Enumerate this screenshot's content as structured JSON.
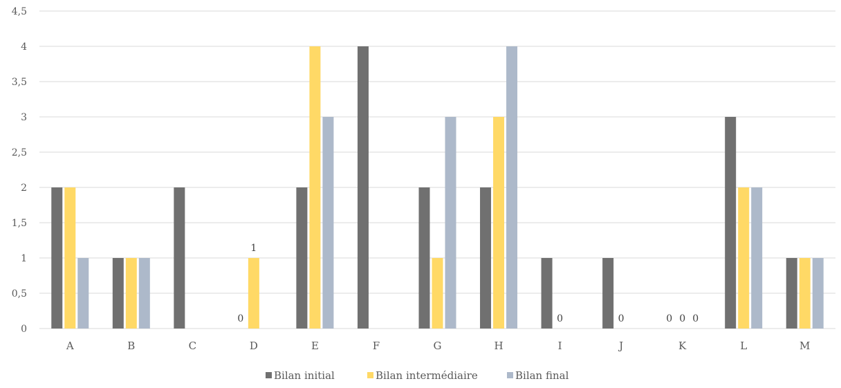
{
  "chart_data": {
    "type": "bar",
    "categories": [
      "A",
      "B",
      "C",
      "D",
      "E",
      "F",
      "G",
      "H",
      "I",
      "J",
      "K",
      "L",
      "M"
    ],
    "series": [
      {
        "name": "Bilan initial",
        "color": "#707070",
        "values": [
          2,
          1,
          2,
          0,
          2,
          4,
          2,
          2,
          1,
          1,
          0,
          3,
          1
        ]
      },
      {
        "name": "Bilan intermédiaire",
        "color": "#ffd966",
        "values": [
          2,
          1,
          0,
          1,
          4,
          0,
          1,
          3,
          0,
          0,
          0,
          2,
          1
        ]
      },
      {
        "name": "Bilan final",
        "color": "#adb9ca",
        "values": [
          1,
          1,
          0,
          0,
          3,
          0,
          3,
          4,
          0,
          0,
          0,
          2,
          1
        ]
      }
    ],
    "data_labels": [
      {
        "category": "D",
        "series": 0,
        "text": "0"
      },
      {
        "category": "D",
        "series": 1,
        "text": "1"
      },
      {
        "category": "I",
        "series": 1,
        "text": "0"
      },
      {
        "category": "J",
        "series": 1,
        "text": "0"
      },
      {
        "category": "K",
        "series": 0,
        "text": "0"
      },
      {
        "category": "K",
        "series": 1,
        "text": "0"
      },
      {
        "category": "K",
        "series": 2,
        "text": "0"
      }
    ],
    "y_ticks": [
      "0",
      "0,5",
      "1",
      "1,5",
      "2",
      "2,5",
      "3",
      "3,5",
      "4",
      "4,5"
    ],
    "ylim": [
      0,
      4.5
    ],
    "grid": true,
    "legend_position": "bottom",
    "title": "",
    "xlabel": "",
    "ylabel": ""
  }
}
